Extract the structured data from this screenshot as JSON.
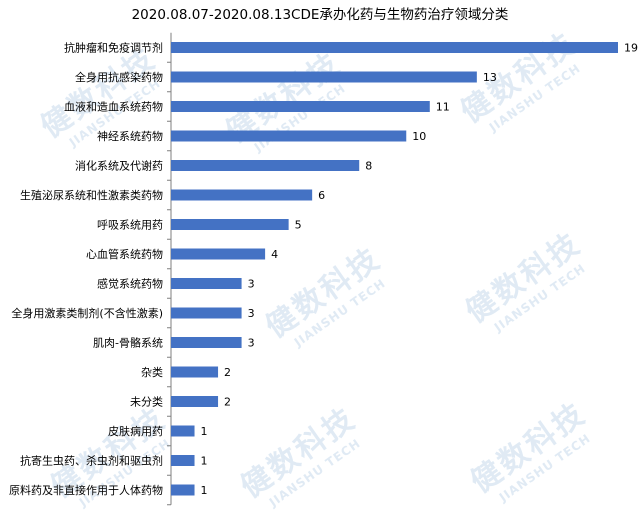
{
  "watermark": {
    "cn": "健数科技",
    "en": "JIANSHU TECH"
  },
  "chart_data": {
    "type": "bar",
    "orientation": "horizontal",
    "title": "2020.08.07-2020.08.13CDE承办化药与生物药治疗领域分类",
    "categories": [
      "抗肿瘤和免疫调节剂",
      "全身用抗感染药物",
      "血液和造血系统药物",
      "神经系统药物",
      "消化系统及代谢药",
      "生殖泌尿系统和性激素类药物",
      "呼吸系统用药",
      "心血管系统药物",
      "感觉系统药物",
      "全身用激素类制剂(不含性激素)",
      "肌肉-骨骼系统",
      "杂类",
      "未分类",
      "皮肤病用药",
      "抗寄生虫药、杀虫剂和驱虫剂",
      "原料药及非直接作用于人体药物"
    ],
    "values": [
      19,
      13,
      11,
      10,
      8,
      6,
      5,
      4,
      3,
      3,
      3,
      2,
      2,
      1,
      1,
      1
    ],
    "bar_color": "#4472c4",
    "axis_color": "#7f7f7f",
    "grid": false,
    "legend": "none",
    "xlim": [
      0,
      19
    ]
  }
}
